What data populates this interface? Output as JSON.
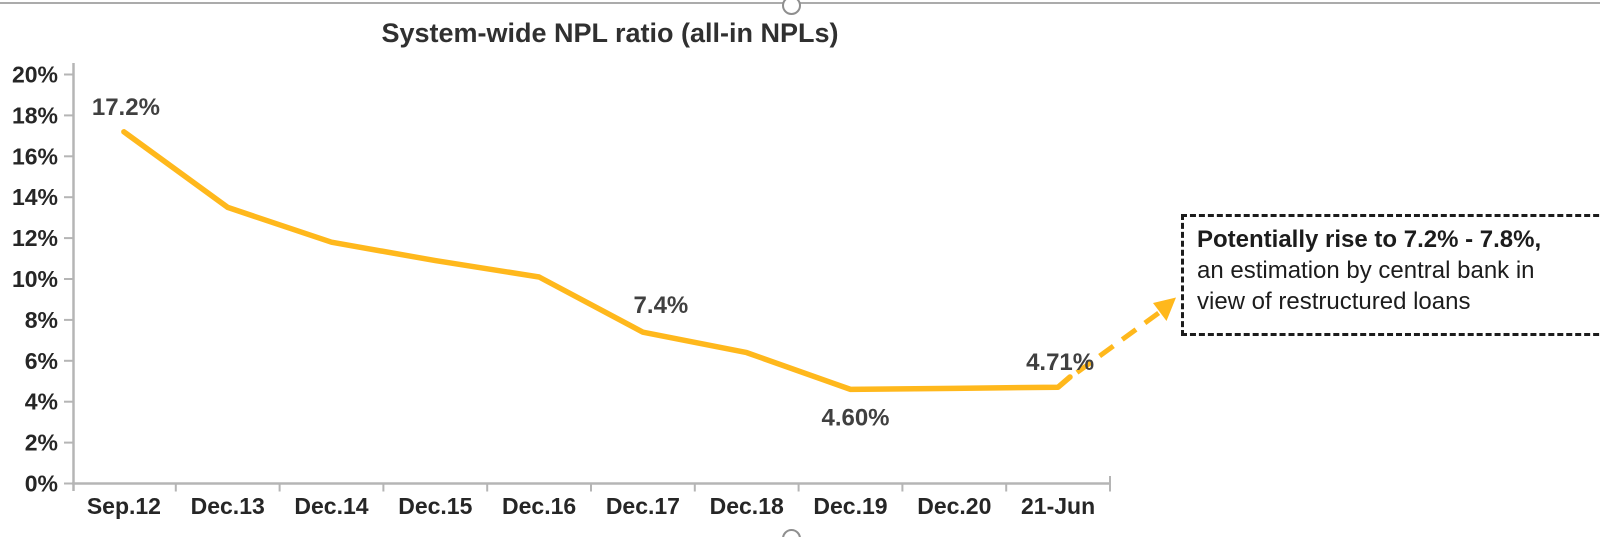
{
  "chart_data": {
    "type": "line",
    "title": "System-wide NPL ratio (all-in NPLs)",
    "categories": [
      "Sep.12",
      "Dec.13",
      "Dec.14",
      "Dec.15",
      "Dec.16",
      "Dec.17",
      "Dec.18",
      "Dec.19",
      "Dec.20",
      "21-Jun"
    ],
    "values": [
      17.2,
      13.5,
      11.8,
      10.9,
      10.1,
      7.4,
      6.4,
      4.6,
      4.65,
      4.71
    ],
    "point_labels": [
      {
        "index": 0,
        "text": "17.2%",
        "placement": "above"
      },
      {
        "index": 5,
        "text": "7.4%",
        "placement": "above-right"
      },
      {
        "index": 7,
        "text": "4.60%",
        "placement": "below"
      },
      {
        "index": 9,
        "text": "4.71%",
        "placement": "above"
      }
    ],
    "y_tick_labels": [
      "20%",
      "18%",
      "16%",
      "14%",
      "12%",
      "10%",
      "8%",
      "6%",
      "4%",
      "2%",
      "0%"
    ],
    "ylim": [
      0,
      20
    ],
    "grid": false,
    "legend": "none",
    "line_color": "#FFB81C",
    "axis_color": "#B5B5B5",
    "tick_label_color": "#262626",
    "data_label_color": "#404040",
    "projection": {
      "style": "dashed-arrow",
      "annotation_line1": "Potentially rise to 7.2% - 7.8%,",
      "annotation_line2": "an estimation by central bank in",
      "annotation_line3": "view of restructured loans"
    }
  },
  "annotation": {
    "line1": "Potentially rise to 7.2% - 7.8%,",
    "line2": "an estimation by central bank in",
    "line3": "view of restructured loans"
  }
}
